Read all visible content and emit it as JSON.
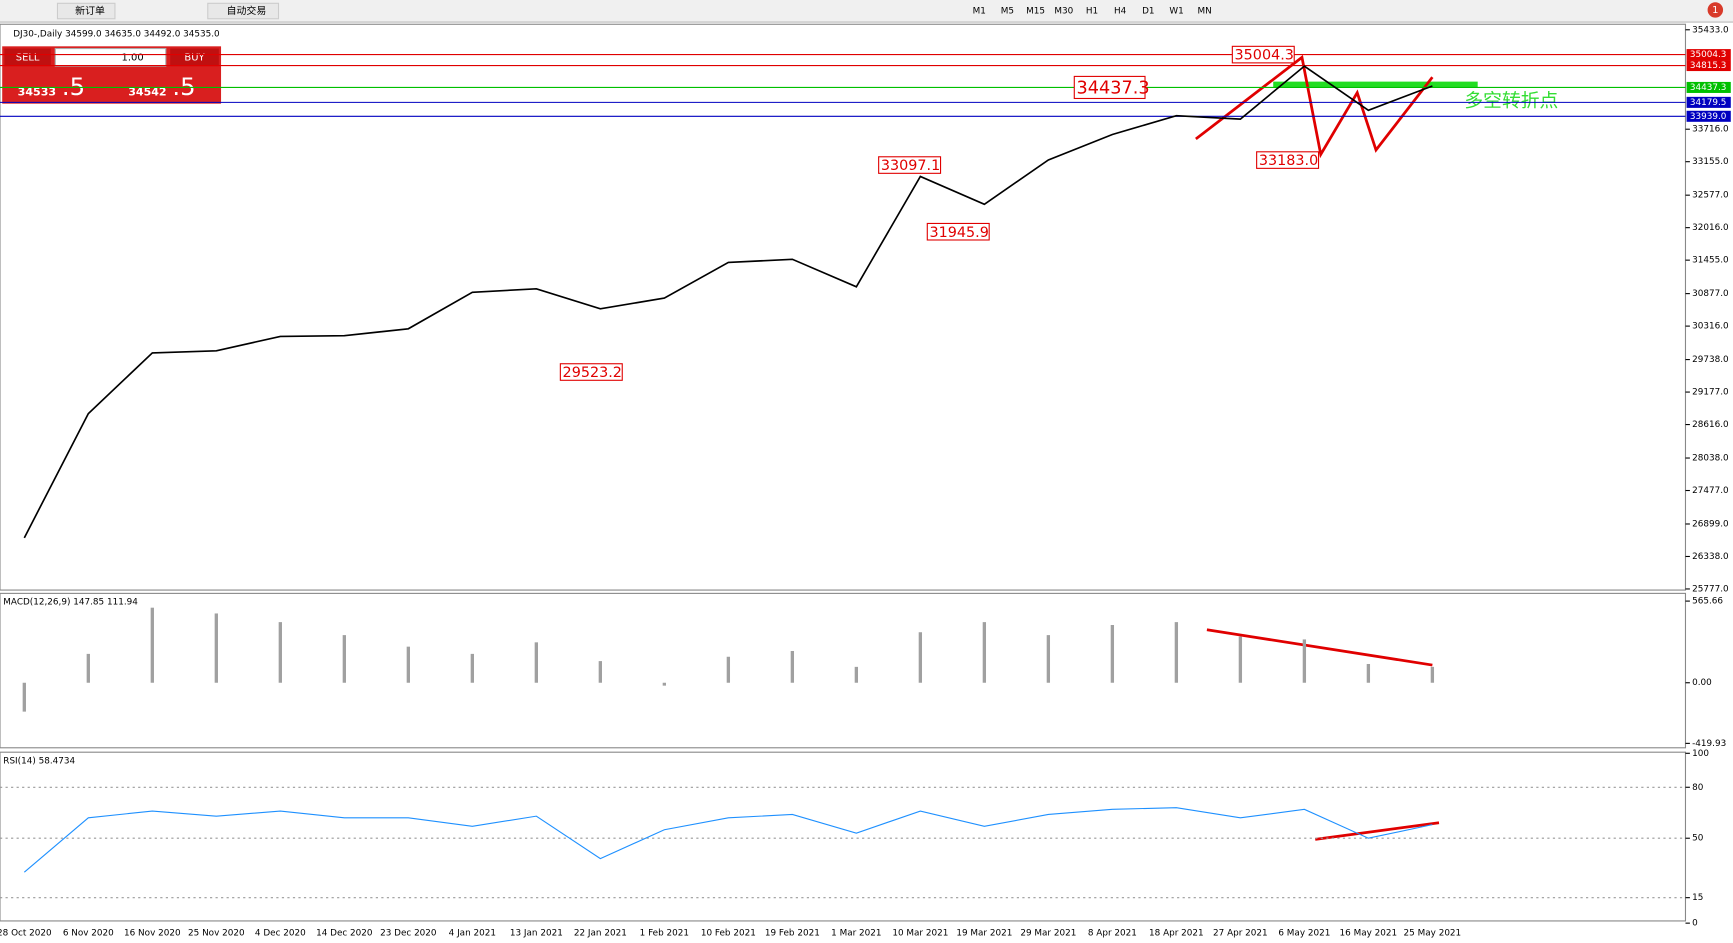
{
  "toolbar": {
    "buttons": [
      "新订单",
      "自动交易"
    ],
    "timeframes": [
      "M1",
      "M5",
      "M15",
      "M30",
      "H1",
      "H4",
      "D1",
      "W1",
      "MN"
    ],
    "badge": "1"
  },
  "trade_panel": {
    "sell": "SELL",
    "lot": "1.00",
    "buy": "BUY",
    "sell_price": "34533",
    "sell_pip": ".5",
    "buy_price": "34542",
    "buy_pip": ".5"
  },
  "chart_data": [
    {
      "type": "line",
      "title": "DJ30-,Daily  34599.0 34635.0 34492.0 34535.0",
      "color": "#000000",
      "values": [
        26660,
        28805,
        29853,
        29890,
        30138,
        30150,
        30270,
        30900,
        30960,
        30615,
        30800,
        31415,
        31470,
        30995,
        32900,
        32420,
        33185,
        33625,
        33950,
        33890,
        34805,
        34043,
        34462
      ],
      "ylim": [
        25777,
        35433
      ],
      "yticks": [
        {
          "value": 35433,
          "label": "35433.0"
        },
        {
          "value": 33716,
          "label": "33716.0"
        },
        {
          "value": 33155,
          "label": "33155.0"
        },
        {
          "value": 32577,
          "label": "32577.0"
        },
        {
          "value": 32016,
          "label": "32016.0"
        },
        {
          "value": 31455,
          "label": "31455.0"
        },
        {
          "value": 30877,
          "label": "30877.0"
        },
        {
          "value": 30316,
          "label": "30316.0"
        },
        {
          "value": 29738,
          "label": "29738.0"
        },
        {
          "value": 29177,
          "label": "29177.0"
        },
        {
          "value": 28616,
          "label": "28616.0"
        },
        {
          "value": 28038,
          "label": "28038.0"
        },
        {
          "value": 27477,
          "label": "27477.0"
        },
        {
          "value": 26899,
          "label": "26899.0"
        },
        {
          "value": 26338,
          "label": "26338.0"
        },
        {
          "value": 25777,
          "label": "25777.0"
        }
      ],
      "levels": [
        {
          "value": 35004.3,
          "label": "35004.3",
          "color": "#e00000"
        },
        {
          "value": 34815.3,
          "label": "34815.3",
          "color": "#e00000"
        },
        {
          "value": 34437.3,
          "label": "34437.3",
          "color": "#00c000"
        },
        {
          "value": 34179.5,
          "label": "34179.5",
          "color": "#0000c0"
        },
        {
          "value": 33939.0,
          "label": "33939.0",
          "color": "#0000c0"
        }
      ],
      "annotations": [
        {
          "value": 35004.3,
          "label": "35004.3"
        },
        {
          "value": 34437.3,
          "label": "34437.3"
        },
        {
          "value": 33097.1,
          "label": "33097.1"
        },
        {
          "value": 31945.9,
          "label": "31945.9"
        },
        {
          "value": 29523.2,
          "label": "29523.2"
        },
        {
          "value": 33183.0,
          "label": "33183.0"
        }
      ],
      "note": "多空转折点"
    },
    {
      "type": "bar",
      "title": "MACD(12,26,9) 147.85 111.94",
      "color": "#a0a0a0",
      "values": [
        -200,
        200,
        520,
        480,
        420,
        330,
        250,
        200,
        280,
        150,
        -20,
        180,
        220,
        110,
        350,
        420,
        330,
        400,
        420,
        320,
        300,
        130,
        110
      ],
      "ylim": [
        -419.93,
        565.66
      ],
      "yticks": [
        {
          "value": 565.66,
          "label": "565.66"
        },
        {
          "value": 0,
          "label": "0.00"
        },
        {
          "value": -419.93,
          "label": "-419.93"
        }
      ]
    },
    {
      "type": "line",
      "title": "RSI(14) 58.4734",
      "color": "#1e90ff",
      "categories": [
        "28 Oct 2020",
        "6 Nov 2020",
        "16 Nov 2020",
        "25 Nov 2020",
        "4 Dec 2020",
        "14 Dec 2020",
        "23 Dec 2020",
        "4 Jan 2021",
        "13 Jan 2021",
        "22 Jan 2021",
        "1 Feb 2021",
        "10 Feb 2021",
        "19 Feb 2021",
        "1 Mar 2021",
        "10 Mar 2021",
        "19 Mar 2021",
        "29 Mar 2021",
        "8 Apr 2021",
        "18 Apr 2021",
        "27 Apr 2021",
        "6 May 2021",
        "16 May 2021",
        "25 May 2021"
      ],
      "values": [
        30,
        62,
        66,
        63,
        66,
        62,
        62,
        57,
        63,
        38,
        55,
        62,
        64,
        53,
        66,
        57,
        64,
        67,
        68,
        62,
        67,
        50,
        58
      ],
      "ylim": [
        0,
        100
      ],
      "yticks": [
        100,
        80,
        50,
        15,
        0
      ]
    }
  ]
}
